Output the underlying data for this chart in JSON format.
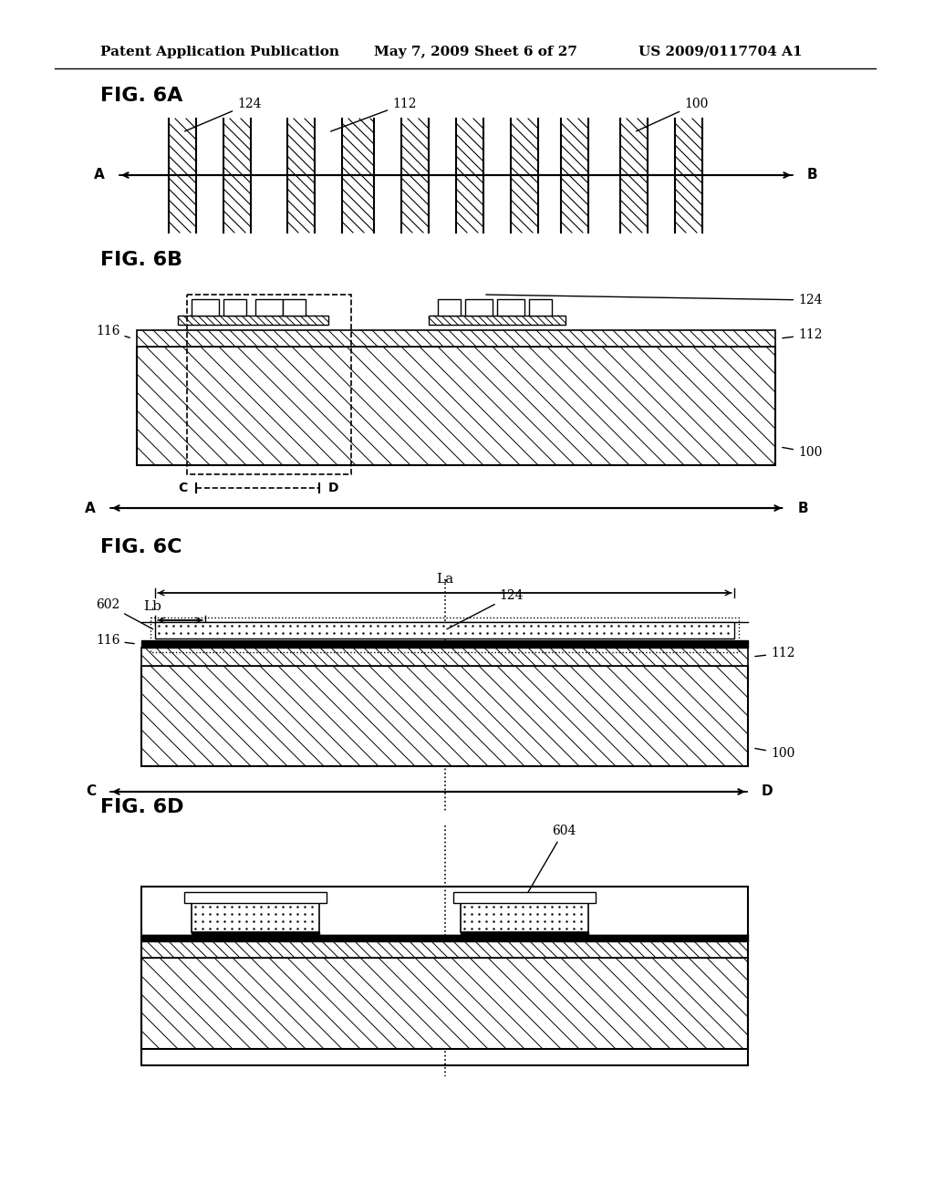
{
  "bg_color": "#ffffff",
  "header_text": "Patent Application Publication",
  "header_date": "May 7, 2009",
  "header_sheet": "Sheet 6 of 27",
  "header_patent": "US 2009/0117704 A1",
  "fig6a_label": "FIG. 6A",
  "fig6b_label": "FIG. 6B",
  "fig6c_label": "FIG. 6C",
  "fig6d_label": "FIG. 6D"
}
